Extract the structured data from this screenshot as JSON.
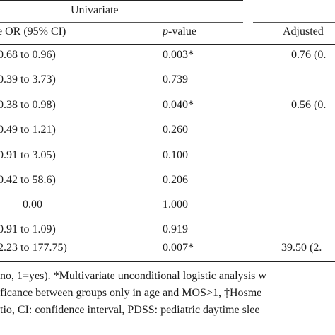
{
  "header": {
    "group_univariate": "Univariate",
    "col_or": "e OR (95% CI)",
    "col_p_italic": "p",
    "col_p_rest": "-value",
    "col_adjusted": "Adjusted"
  },
  "rows": [
    {
      "ci": "0.68 to 0.96)",
      "p": "0.003*",
      "adj": "0.76 (0."
    },
    {
      "ci": "0.39 to 3.73)",
      "p": "0.739",
      "adj": ""
    },
    {
      "ci": "0.38 to 0.98)",
      "p": "0.040*",
      "adj": "0.56 (0."
    },
    {
      "ci": "0.49 to 1.21)",
      "p": "0.260",
      "adj": ""
    },
    {
      "ci": "0.91 to 3.05)",
      "p": "0.100",
      "adj": ""
    },
    {
      "ci": "0.42 to 58.6)",
      "p": "0.206",
      "adj": ""
    },
    {
      "ci": "0.00",
      "p": "1.000",
      "adj": ""
    },
    {
      "ci": "0.91 to 1.09)",
      "p": "0.919",
      "adj": ""
    },
    {
      "ci": "2.23 to 177.75)",
      "p": "0.007*",
      "adj": "39.50 (2."
    }
  ],
  "footnotes": [
    "no, 1=yes). *Multivariate unconditional logistic analysis w",
    "ficance between groups only in age and MOS>1, ‡Hosme",
    "tio, CI: confidence interval, PDSS: pediatric daytime slee"
  ]
}
